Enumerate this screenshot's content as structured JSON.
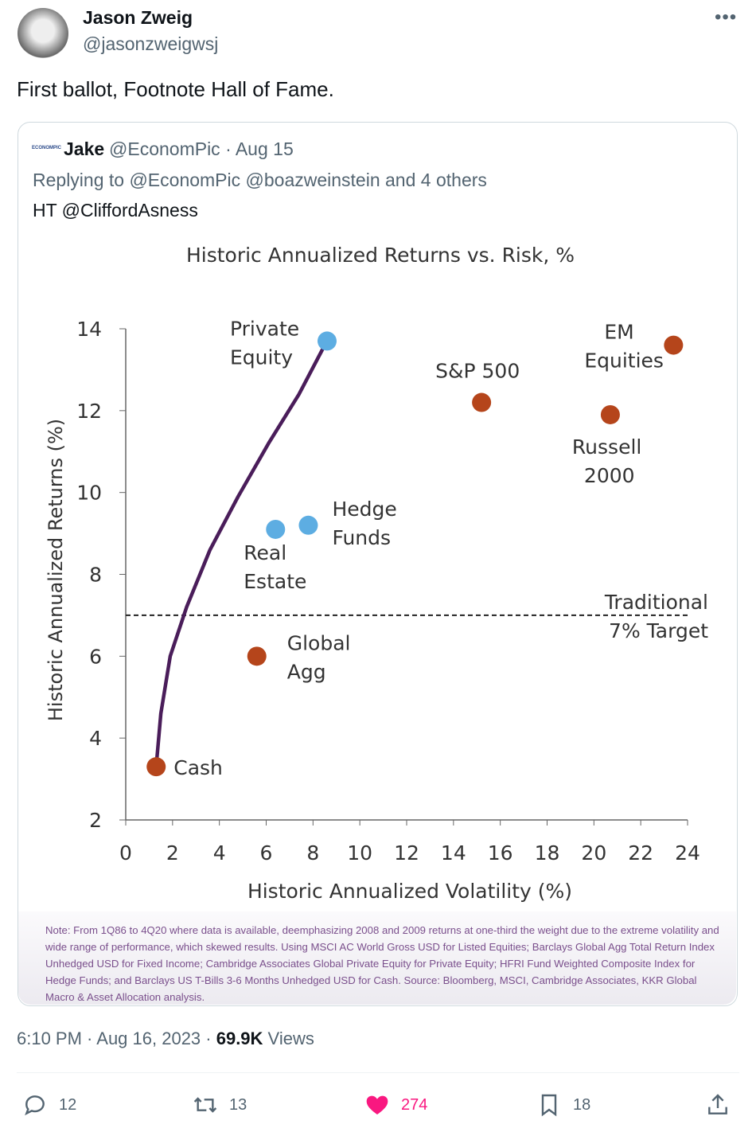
{
  "author": {
    "name": "Jason Zweig",
    "handle": "@jasonzweigwsj"
  },
  "tweet_text": "First ballot, Footnote Hall of Fame.",
  "quoted": {
    "logo_text": "ECONOMPIC",
    "name": "Jake",
    "meta": "@EconomPic · Aug 15",
    "replying": "Replying to @EconomPic @boazweinstein and 4 others",
    "text": "HT @CliffordAsness"
  },
  "chart_data": {
    "type": "scatter",
    "title": "Historic Annualized Returns vs. Risk, %",
    "xlabel": "Historic Annualized Volatility (%)",
    "ylabel": "Historic Annualized Returns (%)",
    "xlim": [
      0,
      24
    ],
    "ylim": [
      2,
      14
    ],
    "xticks": [
      "0",
      "2",
      "4",
      "6",
      "8",
      "10",
      "12",
      "14",
      "16",
      "18",
      "20",
      "22",
      "24"
    ],
    "yticks": [
      "2",
      "4",
      "6",
      "8",
      "10",
      "12",
      "14"
    ],
    "points": [
      {
        "label": "Cash",
        "x": 1.3,
        "y": 3.3,
        "color": "#b5451b"
      },
      {
        "label": "Global Agg",
        "x": 5.6,
        "y": 6.0,
        "color": "#b5451b"
      },
      {
        "label": "Real Estate",
        "x": 6.4,
        "y": 9.1,
        "color": "#5dade2"
      },
      {
        "label": "Hedge Funds",
        "x": 7.8,
        "y": 9.2,
        "color": "#5dade2"
      },
      {
        "label": "Private Equity",
        "x": 8.6,
        "y": 13.7,
        "color": "#5dade2"
      },
      {
        "label": "S&P 500",
        "x": 15.2,
        "y": 12.2,
        "color": "#b5451b"
      },
      {
        "label": "Russell 2000",
        "x": 20.7,
        "y": 11.9,
        "color": "#b5451b"
      },
      {
        "label": "EM Equities",
        "x": 23.4,
        "y": 13.6,
        "color": "#b5451b"
      }
    ],
    "frontier": [
      [
        1.3,
        3.3
      ],
      [
        1.5,
        4.6
      ],
      [
        1.9,
        6.0
      ],
      [
        2.6,
        7.2
      ],
      [
        3.6,
        8.6
      ],
      [
        4.8,
        9.9
      ],
      [
        6.1,
        11.2
      ],
      [
        7.4,
        12.4
      ],
      [
        8.5,
        13.6
      ]
    ],
    "target": {
      "y": 7,
      "label_line1": "Traditional",
      "label_line2": "7% Target"
    }
  },
  "note": "Note: From 1Q86 to 4Q20 where data is available, deemphasizing 2008 and 2009 returns at one-third the weight due to the extreme volatility and wide range of performance, which skewed results. Using MSCI AC World Gross USD for Listed Equities; Barclays Global Agg Total Return Index Unhedged USD for Fixed Income; Cambridge Associates Global Private Equity for Private Equity; HFRI Fund Weighted Composite Index for Hedge Funds; and Barclays US T-Bills 3-6 Months Unhedged USD for Cash. Source: Bloomberg, MSCI, Cambridge Associates, KKR Global Macro & Asset Allocation analysis.",
  "timestamp": "6:10 PM · Aug 16, 2023 · ",
  "views_count": "69.9K",
  "views_label": " Views",
  "actions": {
    "replies": "12",
    "reposts": "13",
    "likes": "274",
    "bookmarks": "18"
  },
  "colors": {
    "like": "#f91880",
    "muted": "#536471"
  }
}
